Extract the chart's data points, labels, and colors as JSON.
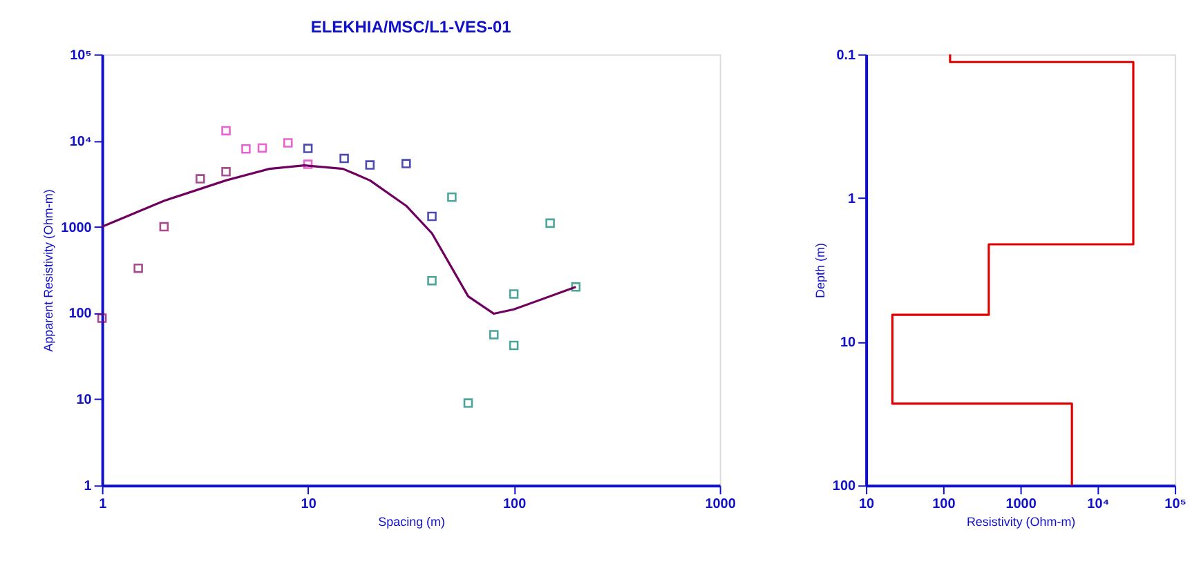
{
  "chart_data": [
    {
      "type": "scatter",
      "title": "ELEKHIA/MSC/L1-VES-01",
      "xlabel": "Spacing (m)",
      "ylabel": "Apparent Resistivity (Ohm-m)",
      "log": "xy",
      "grid": false,
      "marker": "square",
      "xlim": [
        1,
        1000
      ],
      "ylim": [
        1,
        100000
      ],
      "xticks": [
        1,
        10,
        100,
        1000
      ],
      "yticks": [
        1,
        10,
        100,
        1000,
        {
          "value": 10000,
          "label": "10⁴"
        },
        {
          "value": 100000,
          "label": "10⁵"
        }
      ],
      "series": [
        {
          "color": "#800060",
          "x": [
            1,
            1.5,
            2,
            3,
            4
          ],
          "values": [
            87,
            330,
            1000,
            3600,
            4350
          ]
        },
        {
          "color": "#e020c0",
          "x": [
            4,
            5,
            6,
            8,
            10
          ],
          "values": [
            13000,
            8000,
            8200,
            9400,
            5300
          ]
        },
        {
          "color": "#000090",
          "x": [
            10,
            15,
            20,
            30,
            40
          ],
          "values": [
            8100,
            6200,
            5200,
            5400,
            1320
          ]
        },
        {
          "color": "#008070",
          "x": [
            40,
            50,
            60,
            80,
            100,
            100,
            150,
            200
          ],
          "values": [
            237,
            2200,
            9,
            56,
            42,
            166,
            1100,
            200
          ]
        },
        {
          "type": "line",
          "color": "#700060",
          "marker": "none",
          "x": [
            1,
            2,
            4,
            6.5,
            9.6,
            14.8,
            20,
            30,
            40,
            60,
            80,
            100,
            200
          ],
          "values": [
            1000,
            2000,
            3450,
            4700,
            5150,
            4700,
            3450,
            1750,
            840,
            156,
            98,
            110,
            200
          ]
        }
      ]
    },
    {
      "type": "line",
      "xlabel": "Resistivity (Ohm-m)",
      "ylabel": "Depth (m)",
      "log": "xy",
      "grid": false,
      "marker": "none",
      "line_style": "solid",
      "xlim": [
        10,
        100000
      ],
      "ylim": [
        100,
        0.1
      ],
      "xticks": [
        10,
        100,
        1000,
        {
          "value": 10000,
          "label": "10⁴"
        },
        {
          "value": 100000,
          "label": "10⁵"
        }
      ],
      "yticks": [
        0.1,
        1,
        10,
        100
      ],
      "series": [
        {
          "color": "#e00000",
          "x": [
            123,
            123,
            29000,
            29000,
            390,
            390,
            22,
            22,
            4650,
            4650
          ],
          "values": [
            0.1,
            0.113,
            0.113,
            2.1,
            2.1,
            6.5,
            6.5,
            27,
            27,
            100
          ]
        }
      ]
    }
  ]
}
